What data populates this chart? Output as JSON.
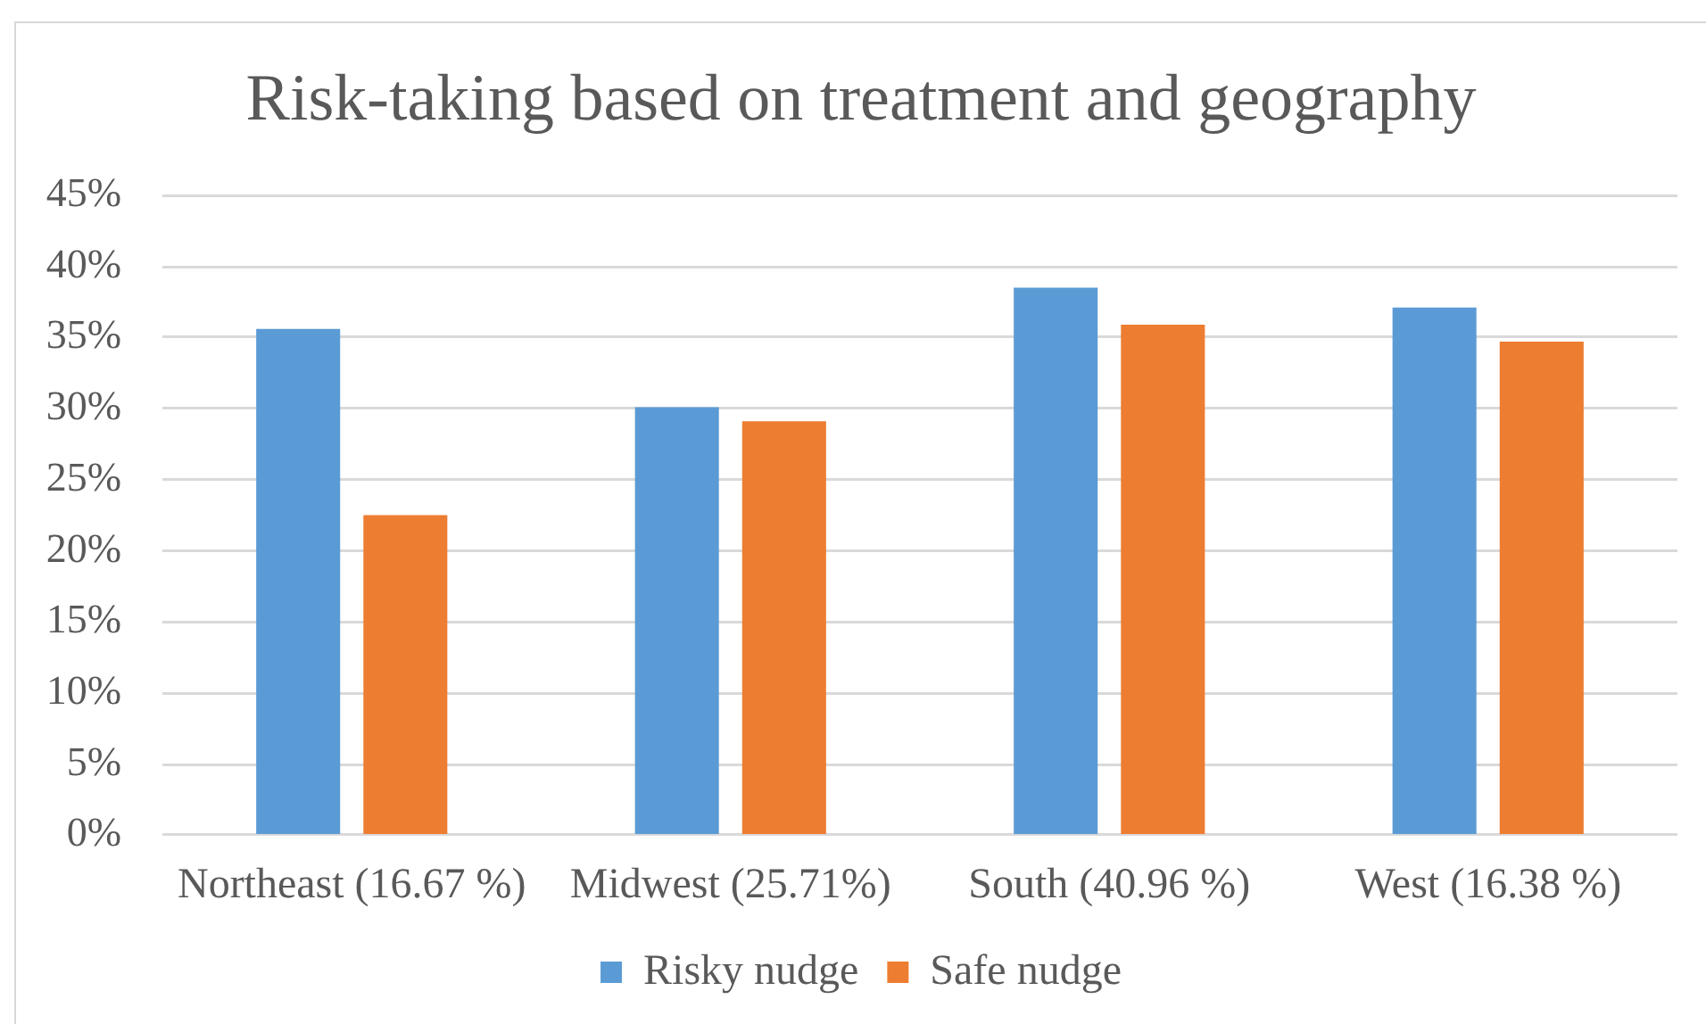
{
  "chart_data": {
    "type": "bar",
    "title": "Risk-taking based on treatment and geography",
    "categories": [
      "Northeast (16.67 %)",
      "Midwest (25.71%)",
      "South (40.96 %)",
      "West (16.38 %)"
    ],
    "series": [
      {
        "name": "Risky nudge",
        "color": "#5b9bd5",
        "values": [
          35.6,
          30.1,
          38.5,
          37.1
        ]
      },
      {
        "name": "Safe nudge",
        "color": "#ed7d31",
        "values": [
          22.5,
          29.1,
          35.9,
          34.7
        ]
      }
    ],
    "ylim": [
      0,
      45
    ],
    "yticks": [
      {
        "value": 0,
        "label": "0%"
      },
      {
        "value": 5,
        "label": "5%"
      },
      {
        "value": 10,
        "label": "10%"
      },
      {
        "value": 15,
        "label": "15%"
      },
      {
        "value": 20,
        "label": "20%"
      },
      {
        "value": 25,
        "label": "25%"
      },
      {
        "value": 30,
        "label": "30%"
      },
      {
        "value": 35,
        "label": "35%"
      },
      {
        "value": 40,
        "label": "40%"
      },
      {
        "value": 45,
        "label": "45%"
      }
    ],
    "grid": "y",
    "legend": "bottom"
  }
}
